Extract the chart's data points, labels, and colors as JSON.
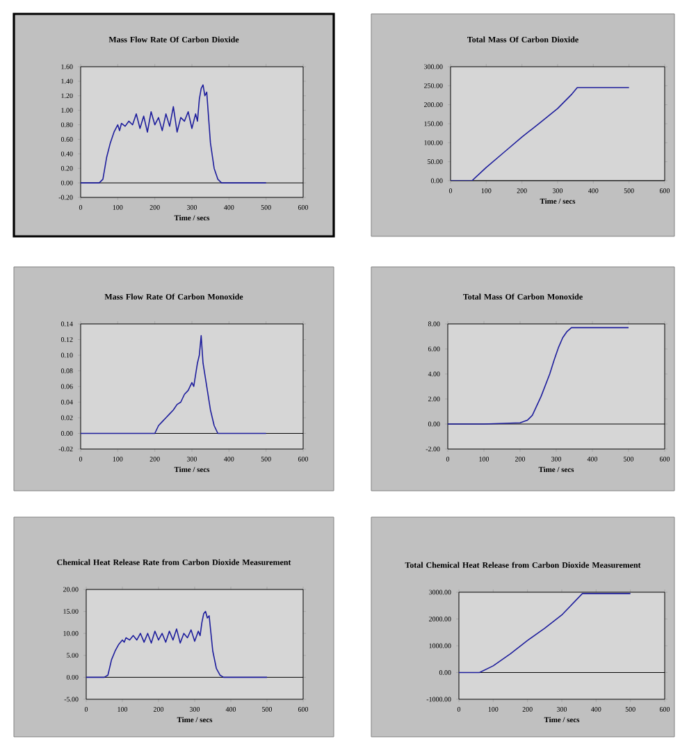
{
  "chart_data": [
    {
      "type": "line",
      "title": "Mass Flow Rate Of Carbon Dioxide",
      "xlabel": "Time / secs",
      "color": "#1c1c9c",
      "xlim": [
        0,
        600
      ],
      "ylim": [
        -0.2,
        1.6
      ],
      "xticks": [
        0,
        100,
        200,
        300,
        400,
        500,
        600
      ],
      "yticks": [
        {
          "value": -0.2,
          "label": "-0.20"
        },
        {
          "value": 0,
          "label": "0.00"
        },
        {
          "value": 0.2,
          "label": "0.20"
        },
        {
          "value": 0.4,
          "label": "0.40"
        },
        {
          "value": 0.6,
          "label": "0.60"
        },
        {
          "value": 0.8,
          "label": "0.80"
        },
        {
          "value": 1.0,
          "label": "1.00"
        },
        {
          "value": 1.2,
          "label": "1.20"
        },
        {
          "value": 1.4,
          "label": "1.40"
        },
        {
          "value": 1.6,
          "label": "1.60"
        }
      ],
      "x": [
        0,
        50,
        60,
        70,
        80,
        90,
        100,
        105,
        110,
        120,
        130,
        140,
        150,
        160,
        170,
        180,
        190,
        200,
        210,
        220,
        230,
        240,
        250,
        260,
        270,
        280,
        290,
        300,
        310,
        315,
        320,
        325,
        330,
        335,
        340,
        345,
        350,
        360,
        370,
        380,
        400,
        450,
        500
      ],
      "values": [
        0,
        0,
        0.05,
        0.35,
        0.55,
        0.7,
        0.8,
        0.72,
        0.82,
        0.78,
        0.85,
        0.8,
        0.95,
        0.75,
        0.92,
        0.7,
        0.98,
        0.8,
        0.9,
        0.72,
        0.95,
        0.78,
        1.05,
        0.7,
        0.9,
        0.85,
        0.98,
        0.75,
        0.95,
        0.85,
        1.15,
        1.3,
        1.35,
        1.2,
        1.25,
        0.9,
        0.55,
        0.2,
        0.05,
        0,
        0,
        0,
        0
      ]
    },
    {
      "type": "line",
      "title": "Total Mass Of Carbon Dioxide",
      "xlabel": "Time / secs",
      "color": "#1c1c9c",
      "xlim": [
        0,
        600
      ],
      "ylim": [
        0,
        300
      ],
      "xticks": [
        0,
        100,
        200,
        300,
        400,
        500,
        600
      ],
      "yticks": [
        {
          "value": 0,
          "label": "0.00"
        },
        {
          "value": 50,
          "label": "50.00"
        },
        {
          "value": 100,
          "label": "100.00"
        },
        {
          "value": 150,
          "label": "150.00"
        },
        {
          "value": 200,
          "label": "200.00"
        },
        {
          "value": 250,
          "label": "250.00"
        },
        {
          "value": 300,
          "label": "300.00"
        }
      ],
      "x": [
        0,
        60,
        100,
        150,
        200,
        250,
        300,
        340,
        355,
        400,
        450,
        500
      ],
      "values": [
        0,
        0,
        35,
        75,
        115,
        152,
        190,
        228,
        245,
        245,
        245,
        245
      ]
    },
    {
      "type": "line",
      "title": "Mass Flow Rate Of Carbon Monoxide",
      "xlabel": "Time / secs",
      "color": "#1c1c9c",
      "xlim": [
        0,
        600
      ],
      "ylim": [
        -0.02,
        0.14
      ],
      "xticks": [
        0,
        100,
        200,
        300,
        400,
        500,
        600
      ],
      "yticks": [
        {
          "value": -0.02,
          "label": "-0.02"
        },
        {
          "value": 0,
          "label": "0.00"
        },
        {
          "value": 0.02,
          "label": "0.02"
        },
        {
          "value": 0.04,
          "label": "0.04"
        },
        {
          "value": 0.06,
          "label": "0.06"
        },
        {
          "value": 0.08,
          "label": "0.08"
        },
        {
          "value": 0.1,
          "label": "0.10"
        },
        {
          "value": 0.12,
          "label": "0.12"
        },
        {
          "value": 0.14,
          "label": "0.14"
        }
      ],
      "x": [
        0,
        100,
        190,
        200,
        210,
        220,
        230,
        240,
        250,
        260,
        270,
        280,
        290,
        295,
        300,
        305,
        310,
        315,
        320,
        325,
        330,
        340,
        350,
        360,
        370,
        400,
        450,
        500
      ],
      "values": [
        0,
        0,
        0,
        0,
        0.01,
        0.015,
        0.02,
        0.025,
        0.03,
        0.037,
        0.04,
        0.05,
        0.055,
        0.06,
        0.065,
        0.06,
        0.075,
        0.09,
        0.1,
        0.125,
        0.09,
        0.06,
        0.03,
        0.01,
        0,
        0,
        0,
        0
      ]
    },
    {
      "type": "line",
      "title": "Total Mass Of Carbon Monoxide",
      "xlabel": "Time / secs",
      "color": "#1c1c9c",
      "xlim": [
        0,
        600
      ],
      "ylim": [
        -2,
        8
      ],
      "xticks": [
        0,
        100,
        200,
        300,
        400,
        500,
        600
      ],
      "yticks": [
        {
          "value": -2,
          "label": "-2.00"
        },
        {
          "value": 0,
          "label": "0.00"
        },
        {
          "value": 2,
          "label": "2.00"
        },
        {
          "value": 4,
          "label": "4.00"
        },
        {
          "value": 6,
          "label": "6.00"
        },
        {
          "value": 8,
          "label": "8.00"
        }
      ],
      "x": [
        0,
        100,
        200,
        220,
        234,
        258,
        270,
        282,
        294,
        306,
        318,
        330,
        342,
        400,
        450,
        500
      ],
      "values": [
        0,
        0,
        0.1,
        0.3,
        0.7,
        2.2,
        3.1,
        4.0,
        5.1,
        6.1,
        6.9,
        7.4,
        7.7,
        7.7,
        7.7,
        7.7
      ]
    },
    {
      "type": "line",
      "title": "Chemical Heat Release Rate from Carbon Dioxide Measurement",
      "xlabel": "Time / secs",
      "color": "#1c1c9c",
      "xlim": [
        0,
        600
      ],
      "ylim": [
        -5,
        20
      ],
      "xticks": [
        0,
        100,
        200,
        300,
        400,
        500,
        600
      ],
      "yticks": [
        {
          "value": -5,
          "label": "-5.00"
        },
        {
          "value": 0,
          "label": "0.00"
        },
        {
          "value": 5,
          "label": "5.00"
        },
        {
          "value": 10,
          "label": "10.00"
        },
        {
          "value": 15,
          "label": "15.00"
        },
        {
          "value": 20,
          "label": "20.00"
        }
      ],
      "x": [
        0,
        50,
        60,
        70,
        80,
        90,
        100,
        105,
        110,
        120,
        130,
        140,
        150,
        160,
        170,
        180,
        190,
        200,
        210,
        220,
        230,
        240,
        250,
        260,
        270,
        280,
        290,
        300,
        310,
        315,
        320,
        325,
        330,
        335,
        340,
        345,
        350,
        360,
        370,
        380,
        400,
        450,
        500
      ],
      "values": [
        0,
        0,
        0.5,
        4,
        6,
        7.5,
        8.5,
        8,
        9,
        8.5,
        9.5,
        8.5,
        10,
        8,
        10,
        7.8,
        10.5,
        8.5,
        10,
        8,
        10.5,
        8.5,
        11,
        7.8,
        10,
        9,
        10.8,
        8.2,
        10.5,
        9.5,
        12.5,
        14.5,
        15,
        13.5,
        14,
        10,
        6,
        2,
        0.5,
        0,
        0,
        0,
        0
      ]
    },
    {
      "type": "line",
      "title": "Total Chemical Heat Release from Carbon Dioxide Measurement",
      "xlabel": "Time / secs",
      "color": "#1c1c9c",
      "xlim": [
        0,
        600
      ],
      "ylim": [
        -1000,
        3000
      ],
      "xticks": [
        0,
        100,
        200,
        300,
        400,
        500,
        600
      ],
      "yticks": [
        {
          "value": -1000,
          "label": "-1000.00"
        },
        {
          "value": 0,
          "label": "0.00"
        },
        {
          "value": 1000,
          "label": "1000.00"
        },
        {
          "value": 2000,
          "label": "2000.00"
        },
        {
          "value": 3000,
          "label": "3000.00"
        }
      ],
      "x": [
        0,
        60,
        100,
        150,
        200,
        250,
        300,
        360,
        400,
        450,
        500
      ],
      "values": [
        0,
        0,
        250,
        700,
        1200,
        1650,
        2150,
        2950,
        2950,
        2950,
        2950
      ]
    }
  ]
}
